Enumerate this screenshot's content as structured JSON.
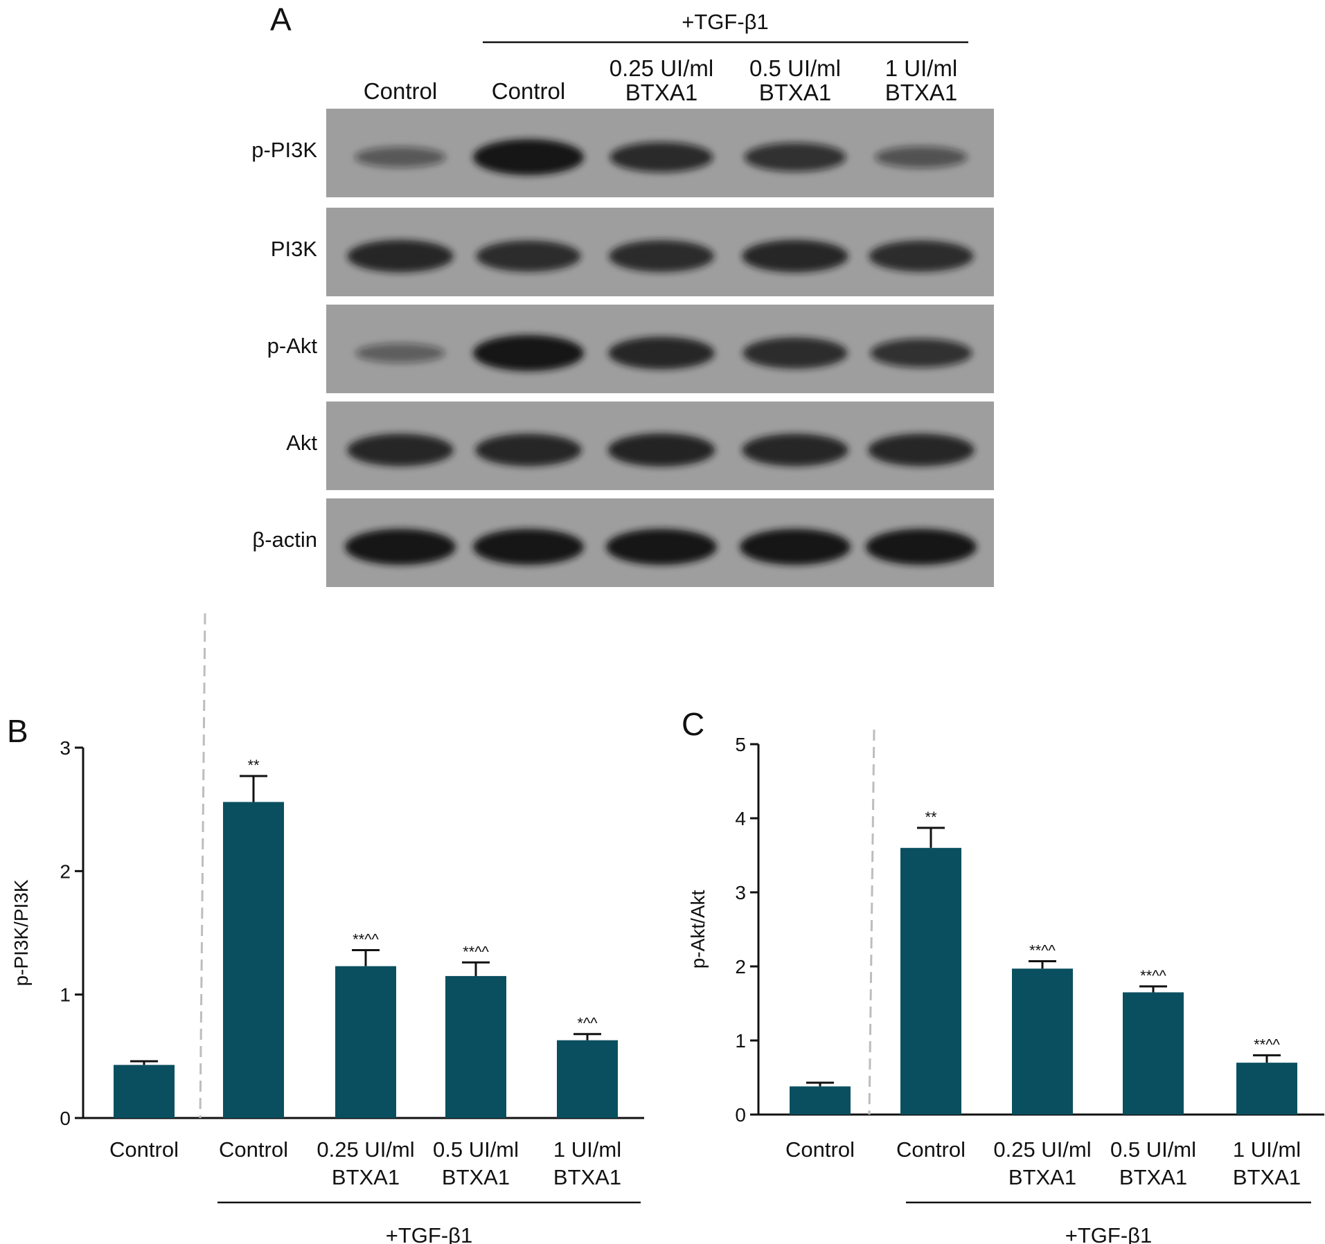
{
  "panel_a": {
    "letter": "A",
    "treatment_label": "+TGF-β1",
    "lanes": [
      [
        "Control"
      ],
      [
        "Control"
      ],
      [
        "0.25 UI/ml",
        "BTXA1"
      ],
      [
        "0.5 UI/ml",
        "BTXA1"
      ],
      [
        "1 UI/ml",
        "BTXA1"
      ]
    ],
    "blots": [
      {
        "label": "p-PI3K",
        "intensities": [
          0.35,
          1.0,
          0.75,
          0.7,
          0.4
        ]
      },
      {
        "label": "PI3K",
        "intensities": [
          0.85,
          0.8,
          0.82,
          0.85,
          0.8
        ]
      },
      {
        "label": "p-Akt",
        "intensities": [
          0.3,
          1.0,
          0.85,
          0.8,
          0.7
        ]
      },
      {
        "label": "Akt",
        "intensities": [
          0.85,
          0.85,
          0.88,
          0.85,
          0.85
        ]
      },
      {
        "label": "β-actin",
        "intensities": [
          1.0,
          1.0,
          1.0,
          1.0,
          1.0
        ]
      }
    ],
    "colors": {
      "membrane": "#9e9e9e",
      "band": "#141414"
    }
  },
  "chart_data": [
    {
      "panel": "B",
      "type": "bar",
      "categories": [
        [
          "Control"
        ],
        [
          "Control"
        ],
        [
          "0.25 UI/ml",
          "BTXA1"
        ],
        [
          "0.5 UI/ml",
          "BTXA1"
        ],
        [
          "1 UI/ml",
          "BTXA1"
        ]
      ],
      "values": [
        0.43,
        2.56,
        1.23,
        1.15,
        0.63
      ],
      "errors": [
        0.03,
        0.21,
        0.13,
        0.11,
        0.05
      ],
      "significance": [
        "",
        "**",
        "**^^",
        "**^^",
        "*^^"
      ],
      "ylabel": "p-PI3K/PI3K",
      "ylim": [
        0,
        3
      ],
      "yticks": [
        0,
        1,
        2,
        3
      ],
      "group_label": "+TGF-β1",
      "bar_color": "#0a4f5f"
    },
    {
      "panel": "C",
      "type": "bar",
      "categories": [
        [
          "Control"
        ],
        [
          "Control"
        ],
        [
          "0.25 UI/ml",
          "BTXA1"
        ],
        [
          "0.5 UI/ml",
          "BTXA1"
        ],
        [
          "1 UI/ml",
          "BTXA1"
        ]
      ],
      "values": [
        0.38,
        3.6,
        1.97,
        1.65,
        0.7
      ],
      "errors": [
        0.05,
        0.27,
        0.1,
        0.08,
        0.1
      ],
      "significance": [
        "",
        "**",
        "**^^",
        "**^^",
        "**^^"
      ],
      "ylabel": "p-Akt/Akt",
      "ylim": [
        0,
        5
      ],
      "yticks": [
        0,
        1,
        2,
        3,
        4,
        5
      ],
      "group_label": "+TGF-β1",
      "bar_color": "#0a4f5f"
    }
  ]
}
